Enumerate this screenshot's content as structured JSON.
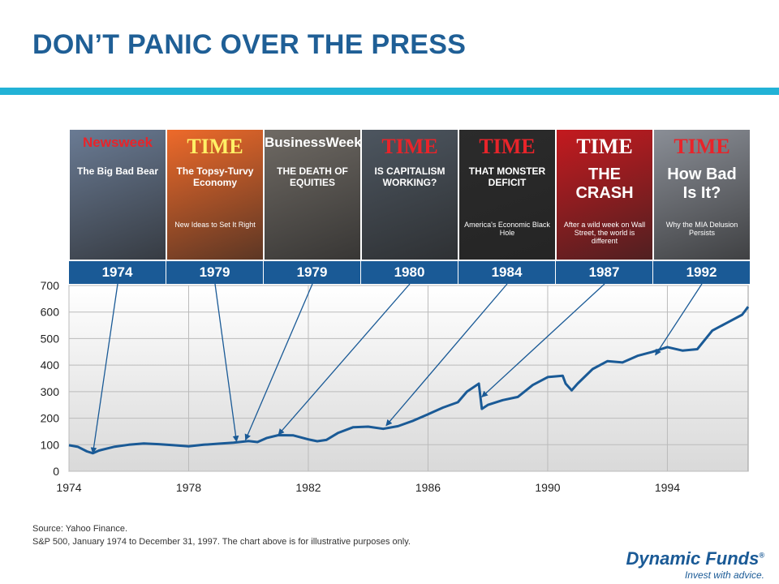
{
  "page": {
    "title": "DON’T PANIC OVER THE PRESS"
  },
  "covers": [
    {
      "year": "1974",
      "logo": "Newsweek",
      "headline": "The Big Bad Bear",
      "bg": "#6a7b94",
      "logo_color": "#e8242a"
    },
    {
      "year": "1979",
      "logo": "TIME",
      "headline": "The Topsy-Turvy Economy",
      "sub": "New Ideas to Set It Right",
      "bg": "#ee6a2a",
      "logo_color": "#fff066"
    },
    {
      "year": "1979",
      "logo": "BusinessWeek",
      "headline": "THE DEATH OF EQUITIES",
      "bg": "#6f6a64",
      "logo_color": "#ffffff"
    },
    {
      "year": "1980",
      "logo": "TIME",
      "headline": "IS CAPITALISM WORKING?",
      "bg": "#4d5660",
      "logo_color": "#e8242a"
    },
    {
      "year": "1984",
      "logo": "TIME",
      "headline": "THAT MONSTER DEFICIT",
      "sub": "America's Economic Black Hole",
      "bg": "#2b2b2b",
      "logo_color": "#e8242a"
    },
    {
      "year": "1987",
      "logo": "TIME",
      "headline": "THE CRASH",
      "sub": "After a wild week on Wall Street, the world is different",
      "bg": "#c41a1f",
      "logo_color": "#ffffff"
    },
    {
      "year": "1992",
      "logo": "TIME",
      "headline": "How Bad Is It?",
      "sub": "Why the MIA Delusion Persists",
      "bg": "#8a8e96",
      "logo_color": "#e8242a"
    }
  ],
  "chart_data": {
    "type": "line",
    "title": "",
    "xlabel": "",
    "ylabel": "",
    "xlim": [
      1974,
      1996.7
    ],
    "ylim": [
      0,
      700
    ],
    "xticks": [
      "1974",
      "1978",
      "1982",
      "1986",
      "1990",
      "1994"
    ],
    "xtick_values": [
      1974,
      1978,
      1982,
      1986,
      1990,
      1994
    ],
    "yticks": [
      "0",
      "100",
      "200",
      "300",
      "400",
      "500",
      "600",
      "700"
    ],
    "ytick_values": [
      0,
      100,
      200,
      300,
      400,
      500,
      600,
      700
    ],
    "grid": true,
    "series_color": "#1a5a96",
    "series": [
      {
        "name": "S&P 500",
        "x": [
          1974.0,
          1974.3,
          1974.6,
          1974.8,
          1975.0,
          1975.5,
          1976.0,
          1976.5,
          1977.0,
          1977.5,
          1978.0,
          1978.5,
          1979.0,
          1979.5,
          1980.0,
          1980.3,
          1980.6,
          1981.0,
          1981.5,
          1982.0,
          1982.3,
          1982.6,
          1983.0,
          1983.5,
          1984.0,
          1984.5,
          1985.0,
          1985.5,
          1986.0,
          1986.5,
          1987.0,
          1987.3,
          1987.7,
          1987.8,
          1988.0,
          1988.5,
          1989.0,
          1989.5,
          1990.0,
          1990.5,
          1990.6,
          1990.8,
          1991.0,
          1991.5,
          1992.0,
          1992.5,
          1993.0,
          1993.5,
          1994.0,
          1994.5,
          1995.0,
          1995.5,
          1996.0,
          1996.5,
          1996.7
        ],
        "y": [
          98,
          92,
          75,
          68,
          78,
          92,
          100,
          105,
          102,
          98,
          94,
          100,
          104,
          108,
          114,
          110,
          125,
          136,
          135,
          120,
          113,
          118,
          145,
          166,
          168,
          160,
          170,
          190,
          215,
          240,
          260,
          300,
          330,
          235,
          250,
          268,
          280,
          325,
          355,
          360,
          330,
          305,
          330,
          385,
          415,
          410,
          435,
          450,
          468,
          455,
          460,
          530,
          560,
          590,
          620
        ]
      }
    ],
    "annotations": [
      {
        "label": "1974",
        "x": 1974.8,
        "y": 68
      },
      {
        "label": "1979",
        "x": 1979.6,
        "y": 112
      },
      {
        "label": "1979",
        "x": 1979.9,
        "y": 118
      },
      {
        "label": "1980",
        "x": 1981.0,
        "y": 138
      },
      {
        "label": "1984",
        "x": 1984.6,
        "y": 172
      },
      {
        "label": "1987",
        "x": 1987.8,
        "y": 280
      },
      {
        "label": "1992",
        "x": 1993.6,
        "y": 438
      }
    ]
  },
  "footer": {
    "source_line1": "Source: Yahoo Finance.",
    "source_line2": "S&P 500, January 1974 to December 31, 1997. The chart above is for illustrative purposes only."
  },
  "brand": {
    "name": "Dynamic Funds",
    "registered": "®",
    "tagline": "Invest with advice."
  }
}
